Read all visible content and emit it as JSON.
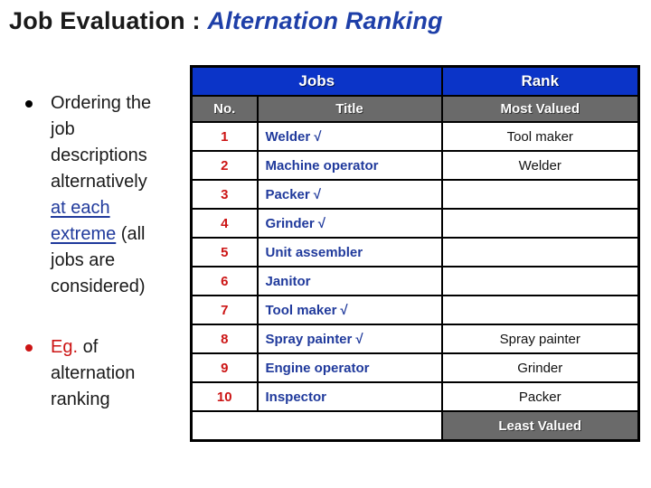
{
  "title": {
    "prefix": "Job Evaluation : ",
    "highlight": "Alternation Ranking"
  },
  "bullets": [
    {
      "name": "bullet-ordering",
      "lines": [
        [
          {
            "text": "Ordering the"
          }
        ],
        [
          {
            "text": "job"
          }
        ],
        [
          {
            "text": "descriptions"
          }
        ],
        [
          {
            "text": "alternatively"
          }
        ],
        [
          {
            "text": "at each",
            "style": "link"
          }
        ],
        [
          {
            "text": "extreme",
            "style": "link"
          },
          {
            "text": " (all"
          }
        ],
        [
          {
            "text": "jobs are"
          }
        ],
        [
          {
            "text": "considered)"
          }
        ]
      ]
    },
    {
      "name": "bullet-example",
      "lines": [
        [
          {
            "text": "Eg.",
            "style": "red"
          },
          {
            "text": " of"
          }
        ],
        [
          {
            "text": "alternation"
          }
        ],
        [
          {
            "text": "ranking"
          }
        ]
      ]
    }
  ],
  "table": {
    "header": {
      "jobs": "Jobs",
      "rank": "Rank"
    },
    "subheader": {
      "no": "No.",
      "title": "Title",
      "rank": "Most Valued"
    },
    "check_glyph": "√",
    "rows": [
      {
        "no": "1",
        "title": "Welder",
        "checked": true,
        "rank": "Tool maker"
      },
      {
        "no": "2",
        "title": "Machine operator",
        "checked": false,
        "rank": "Welder"
      },
      {
        "no": "3",
        "title": "Packer",
        "checked": true,
        "rank": ""
      },
      {
        "no": "4",
        "title": "Grinder",
        "checked": true,
        "rank": ""
      },
      {
        "no": "5",
        "title": "Unit assembler",
        "checked": false,
        "rank": ""
      },
      {
        "no": "6",
        "title": "Janitor",
        "checked": false,
        "rank": ""
      },
      {
        "no": "7",
        "title": "Tool maker",
        "checked": true,
        "rank": ""
      },
      {
        "no": "8",
        "title": "Spray painter",
        "checked": true,
        "rank": "Spray painter"
      },
      {
        "no": "9",
        "title": "Engine operator",
        "checked": false,
        "rank": "Grinder"
      },
      {
        "no": "10",
        "title": "Inspector",
        "checked": false,
        "rank": "Packer"
      }
    ],
    "footer": {
      "rank": "Least Valued"
    }
  },
  "colors": {
    "header_blue": "#0b34c8",
    "subheader_gray": "#6a6a6a",
    "number_red": "#cc1414",
    "job_title_blue": "#203a9c",
    "title_accent_blue": "#1e3fa8",
    "border_black": "#000000"
  }
}
